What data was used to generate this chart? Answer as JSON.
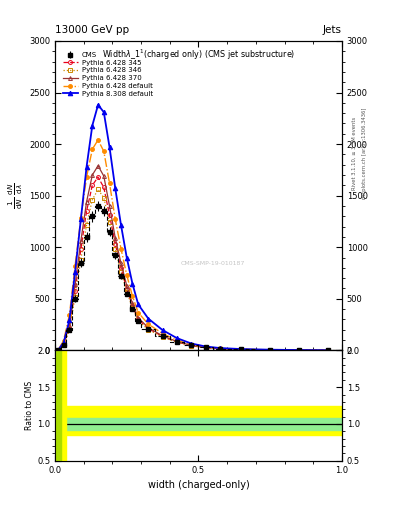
{
  "title_top_left": "13000 GeV pp",
  "title_top_right": "Jets",
  "plot_title": "Width $\\lambda_1^1$ (charged only) (CMS jet substructure)",
  "xlabel": "width (charged-only)",
  "ylabel_main": "$\\frac{1}{\\mathrm{d}N}$ $\\frac{\\mathrm{d}N}{\\mathrm{d}\\lambda}$",
  "ylabel_ratio": "Ratio to CMS",
  "right_label_1": "Rivet 3.1.10, ≥ 3.3M events",
  "right_label_2": "mcplots.cern.ch [arXiv:1306.3436]",
  "watermark": "CMS-SMP-19-010187",
  "x_bins": [
    0.0,
    0.02,
    0.04,
    0.06,
    0.08,
    0.1,
    0.12,
    0.14,
    0.16,
    0.18,
    0.2,
    0.22,
    0.24,
    0.26,
    0.28,
    0.3,
    0.35,
    0.4,
    0.45,
    0.5,
    0.55,
    0.6,
    0.7,
    0.8,
    0.9,
    1.0
  ],
  "cms_y": [
    0,
    50,
    200,
    500,
    850,
    1100,
    1300,
    1400,
    1350,
    1150,
    920,
    720,
    550,
    400,
    285,
    205,
    140,
    85,
    50,
    28,
    16,
    9,
    4,
    1.5,
    0.4,
    0
  ],
  "cms_yerr": [
    0,
    15,
    25,
    35,
    45,
    50,
    52,
    52,
    48,
    44,
    38,
    33,
    28,
    23,
    18,
    15,
    12,
    10,
    8,
    6,
    5,
    4,
    2.5,
    1.5,
    0.8,
    0
  ],
  "p6_345_y": [
    0,
    55,
    220,
    580,
    980,
    1350,
    1600,
    1680,
    1580,
    1310,
    1030,
    800,
    595,
    430,
    300,
    210,
    135,
    82,
    46,
    26,
    15,
    8,
    4,
    1.8,
    0.5,
    0
  ],
  "p6_346_y": [
    0,
    48,
    195,
    520,
    880,
    1220,
    1460,
    1560,
    1480,
    1240,
    980,
    762,
    570,
    412,
    288,
    200,
    128,
    78,
    44,
    24,
    14,
    7.5,
    3.8,
    1.6,
    0.4,
    0
  ],
  "p6_370_y": [
    0,
    62,
    245,
    640,
    1060,
    1440,
    1700,
    1790,
    1690,
    1400,
    1090,
    845,
    628,
    454,
    316,
    220,
    140,
    85,
    48,
    27,
    16,
    9,
    4.5,
    2.0,
    0.55,
    0
  ],
  "p6_default_y": [
    0,
    95,
    340,
    820,
    1280,
    1680,
    1950,
    2040,
    1930,
    1620,
    1270,
    985,
    730,
    525,
    365,
    255,
    162,
    98,
    55,
    31,
    18,
    10,
    5,
    2.2,
    0.6,
    0
  ],
  "p8_default_y": [
    0,
    75,
    290,
    760,
    1270,
    1780,
    2180,
    2380,
    2310,
    1970,
    1570,
    1215,
    900,
    645,
    445,
    308,
    196,
    118,
    66,
    37,
    22,
    12,
    6,
    2.6,
    0.7,
    0
  ],
  "ylim_main": [
    0,
    3000
  ],
  "ylim_ratio": [
    0.5,
    2.0
  ],
  "yticks_main": [
    0,
    500,
    1000,
    1500,
    2000,
    2500,
    3000
  ],
  "yticks_ratio": [
    0.5,
    1.0,
    1.5,
    2.0
  ],
  "xlim": [
    0,
    1
  ],
  "xticks": [
    0,
    0.5,
    1.0
  ],
  "colors": {
    "cms": "#000000",
    "p6_345": "#e8001a",
    "p6_346": "#cc8800",
    "p6_370": "#993333",
    "p6_default": "#ff8c00",
    "p8_default": "#0000ee"
  },
  "ratio_yellow_lo": 0.85,
  "ratio_yellow_hi": 1.25,
  "ratio_green_lo": 0.92,
  "ratio_green_hi": 1.08
}
